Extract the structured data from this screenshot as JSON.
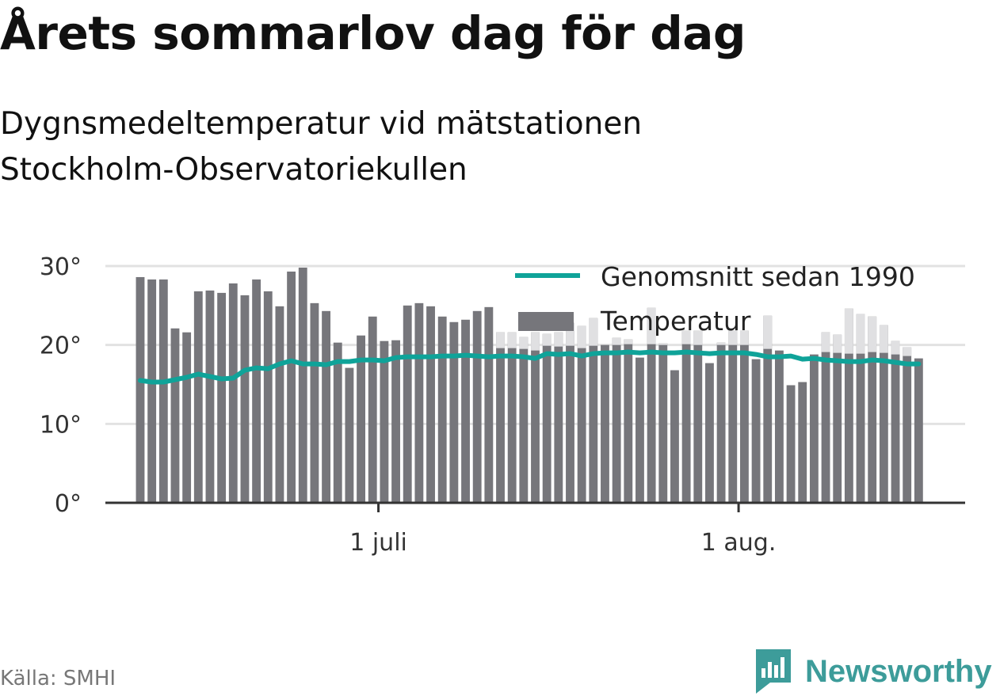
{
  "title": "Årets sommarlov dag för dag",
  "subtitle": "Dygnsmedeltemperatur vid mätstationen Stockholm-Observatoriekullen",
  "source": "Källa: SMHI",
  "brand": {
    "name": "Newsworthy",
    "icon": "newsworthy-logo-icon",
    "color": "#3d9c9a"
  },
  "chart_data": {
    "type": "bar",
    "x_start": "2019-06-10",
    "x_end": "2019-08-16",
    "xlim": [
      "2019-06-07",
      "2019-08-20"
    ],
    "ylim": [
      0,
      30
    ],
    "y_ticks": [
      {
        "value": 0,
        "label": "0°"
      },
      {
        "value": 10,
        "label": "10°"
      },
      {
        "value": 20,
        "label": "20°"
      },
      {
        "value": 30,
        "label": "30°"
      }
    ],
    "x_ticks": [
      {
        "date": "2019-07-01",
        "label": "1 juli"
      },
      {
        "date": "2019-08-01",
        "label": "1 aug."
      }
    ],
    "grid": true,
    "legend_position": "top-right",
    "series": [
      {
        "name": "Temperatur",
        "type": "bar",
        "color": "#76767b",
        "values": [
          28.6,
          28.3,
          28.3,
          22.1,
          21.6,
          26.8,
          26.9,
          26.6,
          27.8,
          26.3,
          28.3,
          26.8,
          24.9,
          29.3,
          29.8,
          25.3,
          24.3,
          20.3,
          17.1,
          21.2,
          23.6,
          20.5,
          20.6,
          25.0,
          25.3,
          24.9,
          23.6,
          22.9,
          23.2,
          24.3,
          24.8,
          21.6,
          21.6,
          21.0,
          21.6,
          21.4,
          21.6,
          22.8,
          22.4,
          23.4,
          20.0,
          20.9,
          20.7,
          18.4,
          24.7,
          20.2,
          16.8,
          21.8,
          21.8,
          17.7,
          20.3,
          21.8,
          21.8,
          18.2,
          23.7,
          19.3,
          14.9,
          15.3,
          18.8,
          21.6,
          21.3,
          24.6,
          23.9,
          23.6,
          22.5,
          20.5,
          19.7,
          18.3
        ],
        "above_average_color": "#e0e0e2"
      },
      {
        "name": "Genomsnitt sedan 1990",
        "type": "line",
        "color": "#0fa399",
        "values": [
          15.5,
          15.3,
          15.3,
          15.6,
          15.9,
          16.3,
          16.0,
          15.7,
          15.8,
          16.8,
          17.1,
          17.0,
          17.6,
          18.0,
          17.6,
          17.6,
          17.5,
          17.9,
          17.9,
          18.1,
          18.1,
          18.0,
          18.4,
          18.5,
          18.5,
          18.5,
          18.6,
          18.6,
          18.7,
          18.6,
          18.5,
          18.6,
          18.6,
          18.5,
          18.3,
          18.9,
          18.8,
          18.9,
          18.6,
          18.9,
          19.0,
          19.0,
          19.1,
          19.0,
          19.1,
          19.0,
          19.0,
          19.1,
          19.0,
          18.9,
          19.0,
          19.0,
          19.0,
          18.8,
          18.5,
          18.5,
          18.6,
          18.2,
          18.3,
          18.1,
          18.0,
          17.9,
          17.9,
          18.1,
          18.0,
          17.8,
          17.6,
          17.6
        ]
      }
    ]
  }
}
